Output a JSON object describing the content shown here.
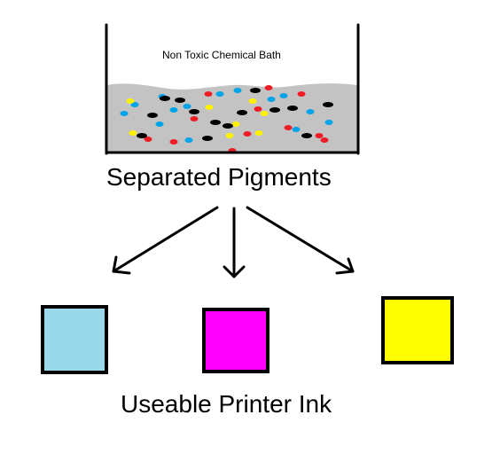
{
  "bath_label": "Non Toxic Chemical Bath",
  "separated_label": "Separated Pigments",
  "ink_label": "Useable Printer Ink",
  "colors": {
    "outline": "#000000",
    "liquid": "#c3c3c3",
    "cyan": "#00a2e8",
    "yellow": "#fff200",
    "red": "#ed1c24",
    "black": "#000000",
    "ink_cyan": "#99d9ea",
    "ink_magenta": "#ff00ff",
    "ink_yellow": "#ffff00"
  },
  "pigment_counts": {
    "cyan": 14,
    "yellow": 8,
    "red": 12,
    "black": 14
  },
  "swatches": [
    {
      "name": "cyan-ink-swatch",
      "color_key": "ink_cyan"
    },
    {
      "name": "magenta-ink-swatch",
      "color_key": "ink_magenta"
    },
    {
      "name": "yellow-ink-swatch",
      "color_key": "ink_yellow"
    }
  ]
}
